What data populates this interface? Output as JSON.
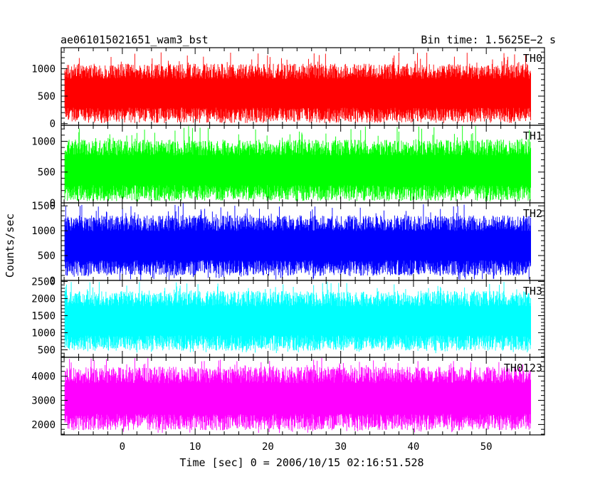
{
  "header": {
    "title": "ae061015021651_wam3_bst",
    "bin_time": "Bin time: 1.5625E−2 s"
  },
  "chart_data": {
    "type": "line",
    "title": "ae061015021651_wam3_bst",
    "xlabel": "Time [sec] 0 = 2006/10/15 02:16:51.528",
    "ylabel": "Counts/sec",
    "xlim": [
      -8.4,
      58
    ],
    "data_x_range": [
      -7.9,
      56.1
    ],
    "x_ticks": [
      0,
      10,
      20,
      30,
      40,
      50
    ],
    "x_tick_labels": [
      "0",
      "10",
      "20",
      "30",
      "40",
      "50"
    ],
    "grid": false,
    "panels": [
      {
        "name": "TH0",
        "color": "#ff0000",
        "ylim": [
          -30,
          1380
        ],
        "y_ticks": [
          0,
          500,
          1000
        ],
        "y_tick_labels": [
          "0",
          "500",
          "1000"
        ],
        "typical_range": [
          150,
          950
        ],
        "approx_min": 80,
        "approx_max": 1300
      },
      {
        "name": "TH1",
        "color": "#00ff00",
        "ylim": [
          0,
          1260
        ],
        "y_ticks": [
          0,
          500,
          1000
        ],
        "y_tick_labels": [
          "0",
          "500",
          "1000"
        ],
        "typical_range": [
          160,
          900
        ],
        "approx_min": 20,
        "approx_max": 1250
      },
      {
        "name": "TH2",
        "color": "#0000ff",
        "ylim": [
          0,
          1560
        ],
        "y_ticks": [
          0,
          500,
          1000,
          1500
        ],
        "y_tick_labels": [
          "0",
          "500",
          "1000",
          "1500"
        ],
        "typical_range": [
          250,
          1150
        ],
        "approx_min": 5,
        "approx_max": 1560
      },
      {
        "name": "TH3",
        "color": "#00ffff",
        "ylim": [
          280,
          2530
        ],
        "y_ticks": [
          500,
          1000,
          1500,
          2000,
          2500
        ],
        "y_tick_labels": [
          "500",
          "1000",
          "1500",
          "2000",
          "2500"
        ],
        "typical_range": [
          700,
          2000
        ],
        "approx_min": 400,
        "approx_max": 2500
      },
      {
        "name": "TH0123",
        "color": "#ff00ff",
        "ylim": [
          1570,
          4780
        ],
        "y_ticks": [
          2000,
          3000,
          4000
        ],
        "y_tick_labels": [
          "2000",
          "3000",
          "4000"
        ],
        "typical_range": [
          2100,
          4050
        ],
        "approx_min": 1650,
        "approx_max": 4750
      }
    ]
  }
}
